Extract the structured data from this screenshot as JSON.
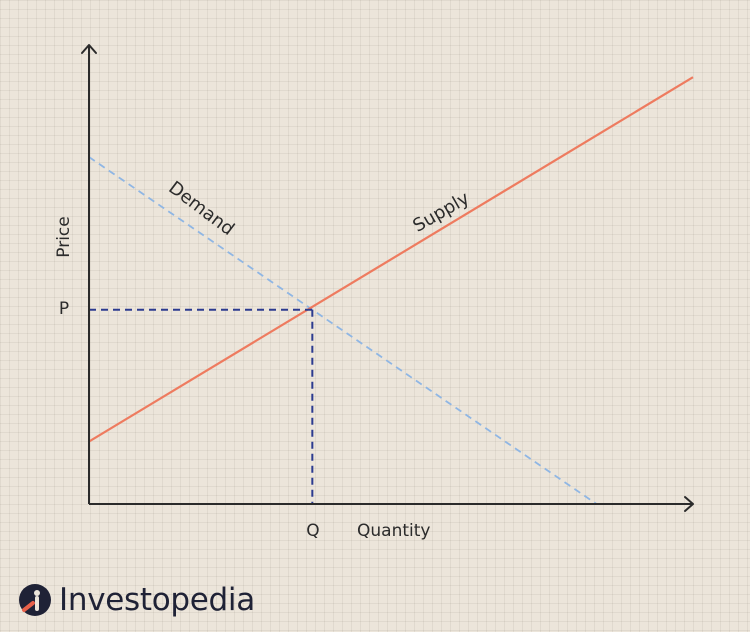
{
  "chart_data": {
    "type": "line",
    "xlabel": "Quantity",
    "ylabel": "Price",
    "x_tick_labels": [
      "Q"
    ],
    "y_tick_labels": [
      "P"
    ],
    "series": [
      {
        "name": "Demand",
        "style": "dashed",
        "color": "#8fb6e4",
        "points": [
          [
            0,
            10
          ],
          [
            10,
            0
          ]
        ]
      },
      {
        "name": "Supply",
        "style": "solid",
        "color": "#ee7b5f",
        "points": [
          [
            0,
            1.8
          ],
          [
            11.9,
            12.3
          ]
        ]
      }
    ],
    "equilibrium": {
      "x": 4.4,
      "y": 5.6,
      "guide_color": "#2c3b8f",
      "guide_style": "dashed"
    },
    "xlim": [
      0,
      11.9
    ],
    "ylim": [
      0,
      13.2
    ],
    "grid": true
  },
  "brand": {
    "name": "Investopedia",
    "icon": "investopedia-logo-icon"
  }
}
